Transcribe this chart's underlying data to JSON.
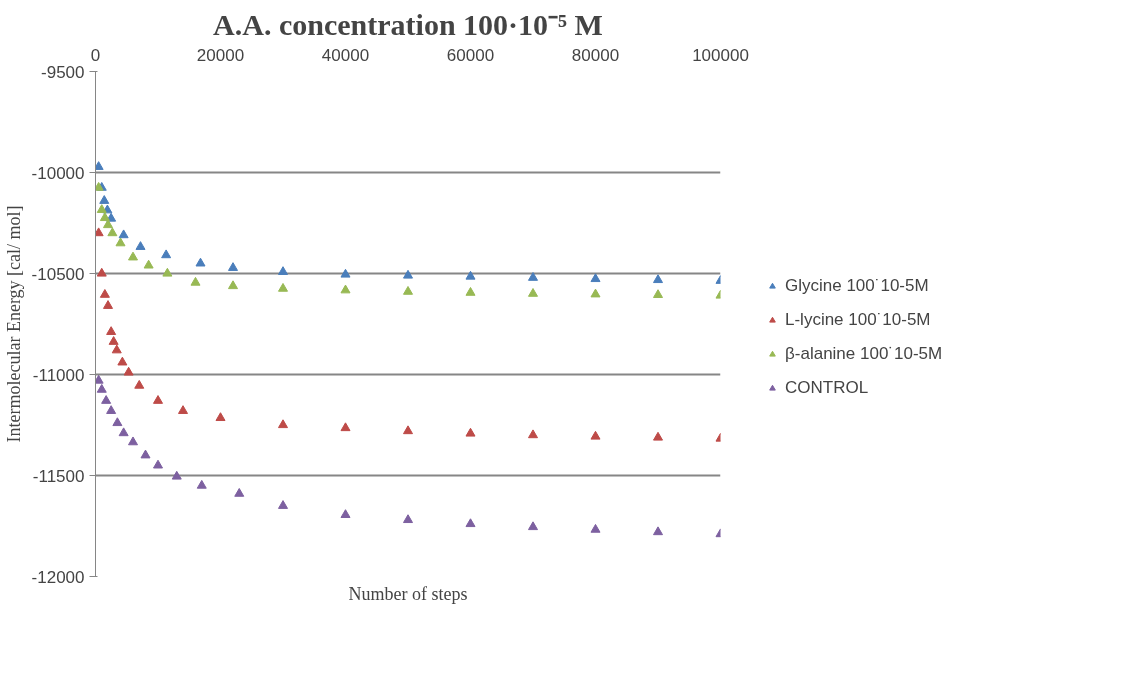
{
  "chart_data": {
    "type": "scatter",
    "title": "A.A. concentration 100·10⁻⁵ M",
    "xlabel": "Number of steps",
    "ylabel": "Intermolecular Energy [cal/ mol]",
    "xlim": [
      0,
      100000
    ],
    "xticks": [
      0,
      20000,
      40000,
      60000,
      80000,
      100000
    ],
    "ylim": [
      -12000,
      -9500
    ],
    "yticks": [
      -12000,
      -11500,
      -11000,
      -10500,
      -10000,
      -9500
    ],
    "grid": "y",
    "legend": "right",
    "marker": "triangle",
    "series": [
      {
        "name": "Glycine 100˙10-5M",
        "color": "#4a7ebb",
        "x": [
          500,
          1000,
          1400,
          1900,
          2500,
          4500,
          7200,
          11300,
          16800,
          22000,
          30000,
          40000,
          50000,
          60000,
          70000,
          80000,
          90000,
          100000
        ],
        "values": [
          -9972,
          -10075,
          -10140,
          -10187,
          -10228,
          -10310,
          -10368,
          -10409,
          -10450,
          -10472,
          -10492,
          -10505,
          -10510,
          -10515,
          -10521,
          -10527,
          -10532,
          -10536
        ]
      },
      {
        "name": "L-lycine 100˙10-5M",
        "color": "#be4b48",
        "x": [
          500,
          1000,
          1500,
          2000,
          2500,
          2900,
          3400,
          4300,
          5300,
          7000,
          10000,
          14000,
          20000,
          30000,
          40000,
          50000,
          60000,
          70000,
          80000,
          90000,
          100000
        ],
        "values": [
          -10300,
          -10500,
          -10605,
          -10660,
          -10789,
          -10838,
          -10880,
          -10940,
          -10990,
          -11055,
          -11130,
          -11180,
          -11215,
          -11250,
          -11265,
          -11280,
          -11292,
          -11300,
          -11307,
          -11312,
          -11317
        ]
      },
      {
        "name": "β-alanine 100˙10-5M",
        "color": "#98b954",
        "x": [
          500,
          1000,
          1500,
          2000,
          2700,
          4000,
          6000,
          8500,
          11500,
          16000,
          22000,
          30000,
          40000,
          50000,
          60000,
          70000,
          80000,
          90000,
          100000
        ],
        "values": [
          -10075,
          -10185,
          -10225,
          -10260,
          -10300,
          -10350,
          -10420,
          -10460,
          -10500,
          -10545,
          -10562,
          -10575,
          -10583,
          -10590,
          -10595,
          -10600,
          -10603,
          -10606,
          -10609
        ]
      },
      {
        "name": "CONTROL",
        "color": "#7d60a0",
        "x": [
          500,
          1000,
          1700,
          2500,
          3500,
          4500,
          6000,
          8000,
          10000,
          13000,
          17000,
          23000,
          30000,
          40000,
          50000,
          60000,
          70000,
          80000,
          90000,
          100000
        ],
        "values": [
          -11030,
          -11075,
          -11130,
          -11180,
          -11240,
          -11290,
          -11335,
          -11400,
          -11450,
          -11505,
          -11550,
          -11590,
          -11650,
          -11695,
          -11720,
          -11740,
          -11755,
          -11768,
          -11780,
          -11790
        ]
      }
    ]
  }
}
